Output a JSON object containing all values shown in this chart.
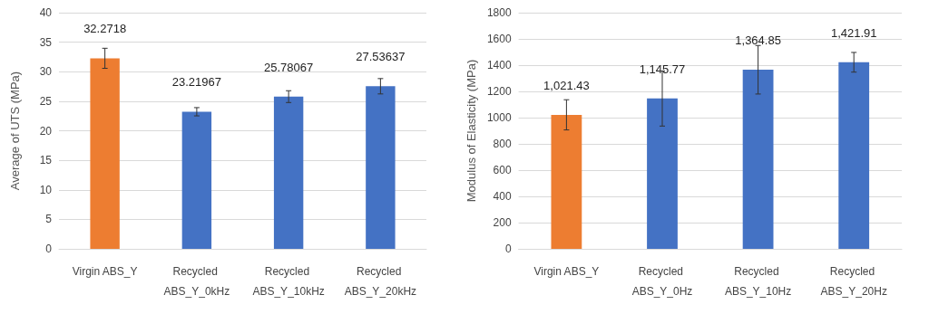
{
  "chart_data": [
    {
      "type": "bar",
      "ylabel": "Average of UTS (MPa)",
      "categories": [
        "Virgin ABS_Y",
        "Recycled ABS_Y_0kHz",
        "Recycled ABS_Y_10kHz",
        "Recycled ABS_Y_20kHz"
      ],
      "values": [
        32.2718,
        23.21967,
        25.78067,
        27.53637
      ],
      "colors": [
        "#ed7d31",
        "#4472c4",
        "#4472c4",
        "#4472c4"
      ],
      "errors": [
        1.7,
        0.7,
        1.0,
        1.3
      ],
      "ylim": [
        0,
        40
      ],
      "yticks": [
        0,
        5,
        10,
        15,
        20,
        25,
        30,
        35,
        40
      ],
      "grid": "y",
      "data_labels": true
    },
    {
      "type": "bar",
      "ylabel": "Modulus of Elasticity (MPa)",
      "categories": [
        "Virgin ABS_Y",
        "Recycled ABS_Y_0Hz",
        "Recycled ABS_Y_10Hz",
        "Recycled ABS_Y_20Hz"
      ],
      "values": [
        1021.43,
        1145.77,
        1364.85,
        1421.91
      ],
      "value_labels": [
        "1,021.43",
        "1,145.77",
        "1,364.85",
        "1,421.91"
      ],
      "colors": [
        "#ed7d31",
        "#4472c4",
        "#4472c4",
        "#4472c4"
      ],
      "errors": [
        115,
        210,
        185,
        75
      ],
      "ylim": [
        0,
        1800
      ],
      "yticks": [
        0,
        200,
        400,
        600,
        800,
        1000,
        1200,
        1400,
        1600,
        1800
      ],
      "grid": "y"
    }
  ]
}
